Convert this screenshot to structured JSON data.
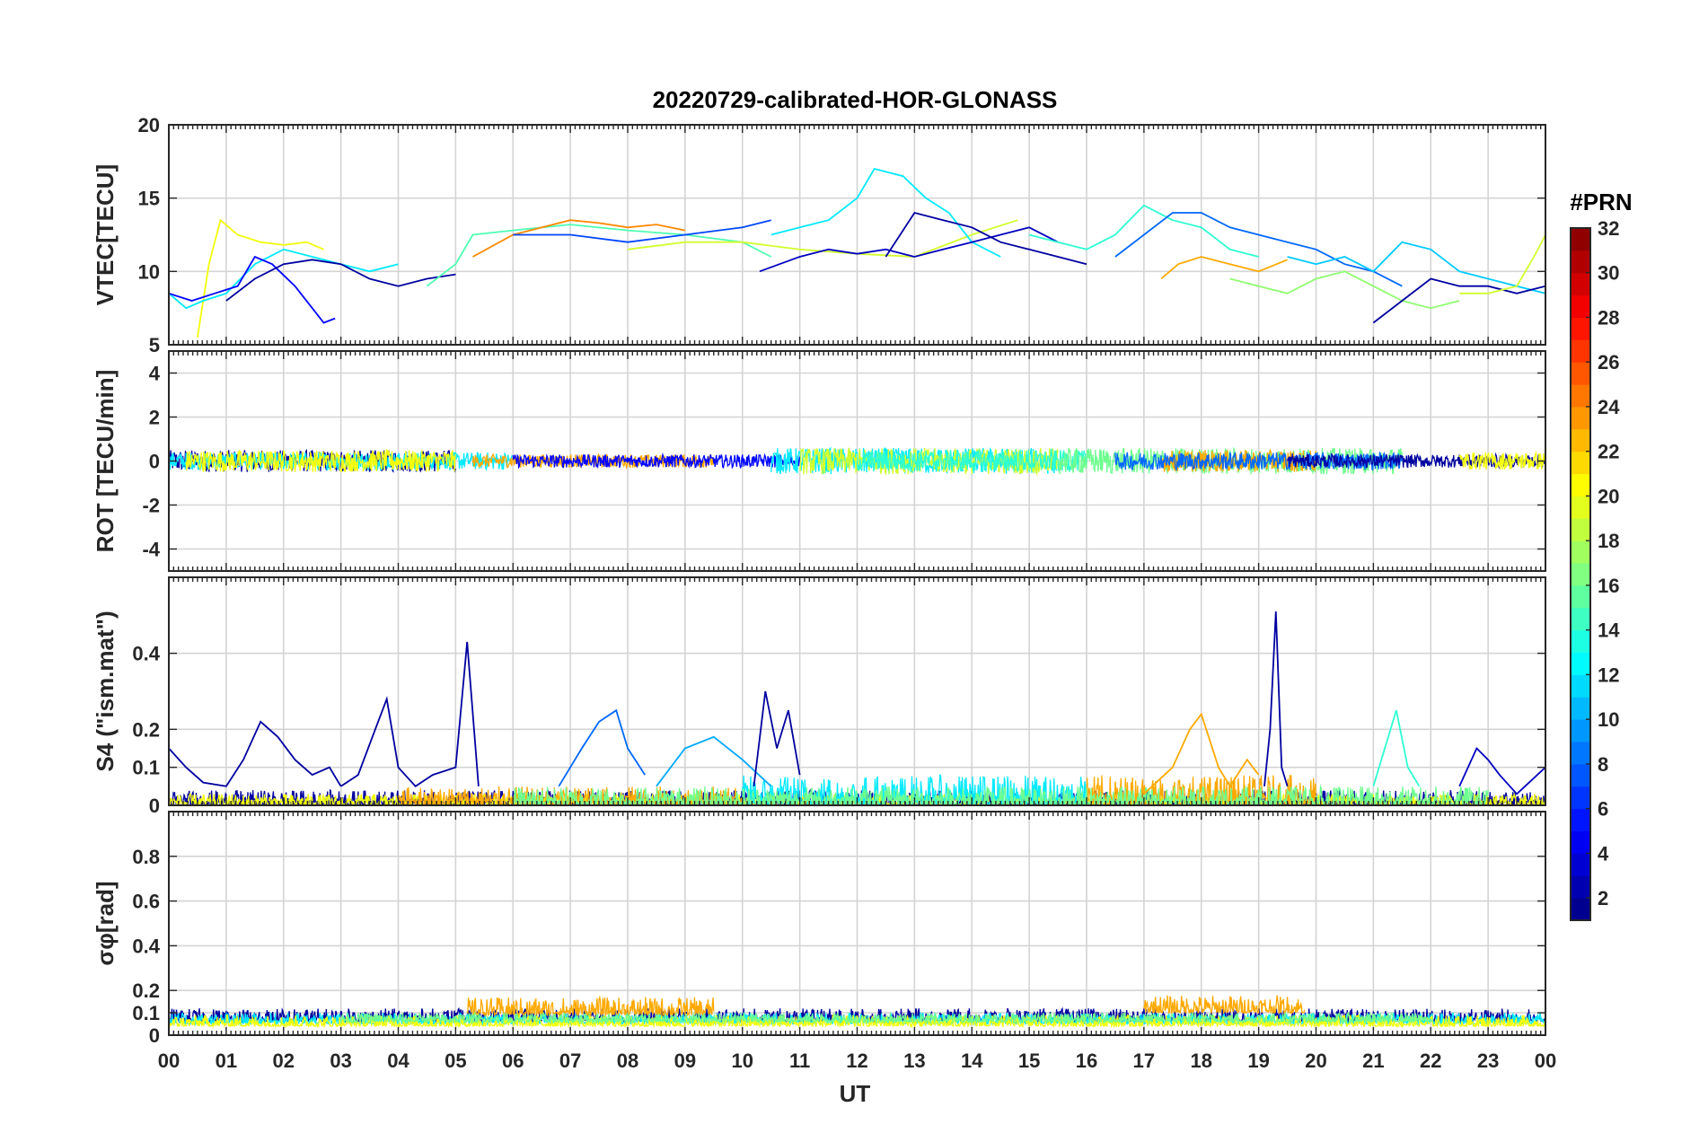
{
  "figure": {
    "title": "20220729-calibrated-HOR-GLONASS",
    "xlabel": "UT",
    "x_tick_labels": [
      "00",
      "01",
      "02",
      "03",
      "04",
      "05",
      "06",
      "07",
      "08",
      "09",
      "10",
      "11",
      "12",
      "13",
      "14",
      "15",
      "16",
      "17",
      "18",
      "19",
      "20",
      "21",
      "22",
      "23",
      "00"
    ]
  },
  "colorbar": {
    "title": "#PRN",
    "colormap": "jet",
    "range": [
      1,
      32
    ],
    "tick_labels": [
      "2",
      "4",
      "6",
      "8",
      "10",
      "12",
      "14",
      "16",
      "18",
      "20",
      "22",
      "24",
      "26",
      "28",
      "30",
      "32"
    ],
    "tick_values": [
      2,
      4,
      6,
      8,
      10,
      12,
      14,
      16,
      18,
      20,
      22,
      24,
      26,
      28,
      30,
      32
    ]
  },
  "chart_data": [
    {
      "type": "line",
      "ylabel": "VTEC[TECU]",
      "xlim": [
        0,
        24
      ],
      "ylim": [
        5,
        20
      ],
      "yticks": [
        5,
        10,
        15,
        20
      ],
      "ytick_labels": [
        "5",
        "10",
        "15",
        "20"
      ],
      "grid": true,
      "x_unit": "UT hours",
      "series": [
        {
          "prn": 20,
          "x": [
            0.5,
            0.7,
            0.9,
            1.2,
            1.6,
            2.0,
            2.4,
            2.7
          ],
          "y": [
            5.5,
            10.5,
            13.5,
            12.5,
            12.0,
            11.8,
            12.0,
            11.5
          ]
        },
        {
          "prn": 12,
          "x": [
            0.0,
            0.3,
            0.6,
            1.0,
            1.5,
            2.0,
            2.5,
            3.0,
            3.5,
            4.0
          ],
          "y": [
            8.5,
            7.5,
            8.0,
            8.5,
            10.5,
            11.5,
            11.0,
            10.5,
            10.0,
            10.5
          ]
        },
        {
          "prn": 5,
          "x": [
            0.0,
            0.4,
            0.8,
            1.2,
            1.5,
            1.8,
            2.2,
            2.5,
            2.7,
            2.9
          ],
          "y": [
            8.5,
            8.0,
            8.5,
            9.0,
            11.0,
            10.5,
            9.0,
            7.5,
            6.5,
            6.8
          ]
        },
        {
          "prn": 2,
          "x": [
            1.0,
            1.5,
            2.0,
            2.5,
            3.0,
            3.5,
            4.0,
            4.5,
            5.0
          ],
          "y": [
            8.0,
            9.5,
            10.5,
            10.8,
            10.5,
            9.5,
            9.0,
            9.5,
            9.8
          ]
        },
        {
          "prn": 15,
          "x": [
            4.5,
            5.0,
            5.3,
            6.0,
            7.0,
            8.0,
            9.0,
            10.0,
            10.5
          ],
          "y": [
            9.0,
            10.5,
            12.5,
            12.8,
            13.2,
            12.8,
            12.5,
            12.0,
            11.0
          ]
        },
        {
          "prn": 24,
          "x": [
            5.3,
            6.0,
            7.0,
            7.5,
            8.0,
            8.5,
            9.0
          ],
          "y": [
            11.0,
            12.5,
            13.5,
            13.3,
            13.0,
            13.2,
            12.8
          ]
        },
        {
          "prn": 7,
          "x": [
            6.0,
            7.0,
            8.0,
            9.0,
            10.0,
            10.5
          ],
          "y": [
            12.5,
            12.5,
            12.0,
            12.5,
            13.0,
            13.5
          ]
        },
        {
          "prn": 19,
          "x": [
            8.0,
            9.0,
            10.0,
            11.0,
            12.0,
            13.0,
            14.0,
            14.8
          ],
          "y": [
            11.5,
            12.0,
            12.0,
            11.5,
            11.2,
            11.0,
            12.5,
            13.5
          ]
        },
        {
          "prn": 12,
          "x": [
            10.5,
            11.0,
            11.5,
            12.0,
            12.3,
            12.8,
            13.2,
            13.6,
            14.0,
            14.5
          ],
          "y": [
            12.5,
            13.0,
            13.5,
            15.0,
            17.0,
            16.5,
            15.0,
            14.0,
            12.0,
            11.0
          ]
        },
        {
          "prn": 3,
          "x": [
            10.3,
            11.0,
            11.5,
            12.0,
            12.5,
            13.0,
            13.5,
            14.0,
            14.5,
            15.0,
            15.5
          ],
          "y": [
            10.0,
            11.0,
            11.5,
            11.2,
            11.5,
            11.0,
            11.5,
            12.0,
            12.5,
            13.0,
            12.0
          ]
        },
        {
          "prn": 2,
          "x": [
            12.5,
            13.0,
            13.5,
            14.0,
            14.5,
            15.0,
            15.5,
            16.0
          ],
          "y": [
            11.0,
            14.0,
            13.5,
            13.0,
            12.0,
            11.5,
            11.0,
            10.5
          ]
        },
        {
          "prn": 14,
          "x": [
            15.0,
            15.5,
            16.0,
            16.5,
            17.0,
            17.5,
            18.0,
            18.5,
            19.0
          ],
          "y": [
            12.5,
            12.0,
            11.5,
            12.5,
            14.5,
            13.5,
            13.0,
            11.5,
            11.0
          ]
        },
        {
          "prn": 23,
          "x": [
            17.3,
            17.6,
            18.0,
            18.5,
            19.0,
            19.5
          ],
          "y": [
            9.5,
            10.5,
            11.0,
            10.5,
            10.0,
            10.8
          ]
        },
        {
          "prn": 8,
          "x": [
            16.5,
            17.0,
            17.5,
            18.0,
            18.5,
            19.0,
            19.5,
            20.0,
            20.5,
            21.0,
            21.5
          ],
          "y": [
            11.0,
            12.5,
            14.0,
            14.0,
            13.0,
            12.5,
            12.0,
            11.5,
            10.5,
            10.0,
            9.0
          ]
        },
        {
          "prn": 17,
          "x": [
            18.5,
            19.0,
            19.5,
            20.0,
            20.5,
            21.0,
            21.5,
            22.0,
            22.5
          ],
          "y": [
            9.5,
            9.0,
            8.5,
            9.5,
            10.0,
            9.0,
            8.0,
            7.5,
            8.0
          ]
        },
        {
          "prn": 11,
          "x": [
            19.5,
            20.0,
            20.5,
            21.0,
            21.5,
            22.0,
            22.5,
            23.0,
            23.5,
            24.0
          ],
          "y": [
            11.0,
            10.5,
            11.0,
            10.0,
            12.0,
            11.5,
            10.0,
            9.5,
            9.0,
            8.5
          ]
        },
        {
          "prn": 2,
          "x": [
            21.0,
            21.5,
            22.0,
            22.5,
            23.0,
            23.5,
            24.0
          ],
          "y": [
            6.5,
            8.0,
            9.5,
            9.0,
            9.0,
            8.5,
            9.0
          ]
        },
        {
          "prn": 19,
          "x": [
            22.5,
            23.0,
            23.5,
            23.8,
            24.0
          ],
          "y": [
            8.5,
            8.5,
            9.0,
            11.0,
            12.5
          ]
        }
      ]
    },
    {
      "type": "line",
      "ylabel": "ROT [TECU/min]",
      "xlim": [
        0,
        24
      ],
      "ylim": [
        -5,
        5
      ],
      "yticks": [
        -4,
        -2,
        0,
        2,
        4
      ],
      "ytick_labels": [
        "-4",
        "-2",
        "0",
        "2",
        "4"
      ],
      "grid": true,
      "x_unit": "UT hours",
      "noise_bands": [
        {
          "prn": 2,
          "x0": 0.0,
          "x1": 5.0,
          "amp": 0.5
        },
        {
          "prn": 12,
          "x0": 0.0,
          "x1": 6.0,
          "amp": 0.4
        },
        {
          "prn": 20,
          "x0": 0.3,
          "x1": 5.0,
          "amp": 0.5
        },
        {
          "prn": 23,
          "x0": 5.3,
          "x1": 9.5,
          "amp": 0.3
        },
        {
          "prn": 5,
          "x0": 6.0,
          "x1": 11.0,
          "amp": 0.3
        },
        {
          "prn": 12,
          "x0": 10.5,
          "x1": 15.5,
          "amp": 0.6
        },
        {
          "prn": 19,
          "x0": 11.0,
          "x1": 15.5,
          "amp": 0.6
        },
        {
          "prn": 14,
          "x0": 12.0,
          "x1": 16.0,
          "amp": 0.5
        },
        {
          "prn": 16,
          "x0": 15.5,
          "x1": 21.5,
          "amp": 0.6
        },
        {
          "prn": 23,
          "x0": 17.3,
          "x1": 20.0,
          "amp": 0.5
        },
        {
          "prn": 8,
          "x0": 16.5,
          "x1": 21.5,
          "amp": 0.4
        },
        {
          "prn": 2,
          "x0": 19.5,
          "x1": 24.0,
          "amp": 0.3
        },
        {
          "prn": 20,
          "x0": 22.5,
          "x1": 24.0,
          "amp": 0.4
        }
      ]
    },
    {
      "type": "line",
      "ylabel": "S4 (\"ism.mat\")",
      "xlim": [
        0,
        24
      ],
      "ylim": [
        0,
        0.6
      ],
      "yticks": [
        0,
        0.1,
        0.2,
        0.4
      ],
      "ytick_labels": [
        "0",
        "0.1",
        "0.2",
        "0.4"
      ],
      "grid": true,
      "x_unit": "UT hours",
      "series": [
        {
          "prn": 2,
          "x": [
            0.0,
            0.3,
            0.6,
            1.0,
            1.3,
            1.6,
            1.9,
            2.2,
            2.5,
            2.8,
            3.0
          ],
          "y": [
            0.15,
            0.1,
            0.06,
            0.05,
            0.12,
            0.22,
            0.18,
            0.12,
            0.08,
            0.1,
            0.05
          ]
        },
        {
          "prn": 2,
          "x": [
            3.0,
            3.3,
            3.6,
            3.8,
            4.0,
            4.3,
            4.6,
            5.0,
            5.2,
            5.4
          ],
          "y": [
            0.05,
            0.08,
            0.2,
            0.28,
            0.1,
            0.05,
            0.08,
            0.1,
            0.43,
            0.05
          ]
        },
        {
          "prn": 8,
          "x": [
            6.8,
            7.2,
            7.5,
            7.8,
            8.0,
            8.3
          ],
          "y": [
            0.05,
            0.15,
            0.22,
            0.25,
            0.15,
            0.08
          ]
        },
        {
          "prn": 10,
          "x": [
            8.5,
            9.0,
            9.5,
            10.0,
            10.5
          ],
          "y": [
            0.05,
            0.15,
            0.18,
            0.12,
            0.05
          ]
        },
        {
          "prn": 2,
          "x": [
            10.2,
            10.4,
            10.6,
            10.8,
            11.0
          ],
          "y": [
            0.05,
            0.3,
            0.15,
            0.25,
            0.08
          ]
        },
        {
          "prn": 23,
          "x": [
            17.0,
            17.5,
            17.8,
            18.0,
            18.3,
            18.5,
            18.8,
            19.0
          ],
          "y": [
            0.03,
            0.1,
            0.2,
            0.24,
            0.1,
            0.05,
            0.12,
            0.08
          ]
        },
        {
          "prn": 2,
          "x": [
            19.1,
            19.2,
            19.3,
            19.4,
            19.5
          ],
          "y": [
            0.05,
            0.2,
            0.51,
            0.1,
            0.05
          ]
        },
        {
          "prn": 14,
          "x": [
            21.0,
            21.2,
            21.4,
            21.6,
            21.8
          ],
          "y": [
            0.05,
            0.15,
            0.25,
            0.1,
            0.05
          ]
        },
        {
          "prn": 3,
          "x": [
            22.5,
            22.8,
            23.0,
            23.2,
            23.5,
            24.0
          ],
          "y": [
            0.05,
            0.15,
            0.12,
            0.08,
            0.03,
            0.1
          ]
        }
      ],
      "noise_bands": [
        {
          "prn": 2,
          "x0": 0.0,
          "x1": 24.0,
          "amp": 0.04
        },
        {
          "prn": 20,
          "x0": 0.0,
          "x1": 24.0,
          "amp": 0.03
        },
        {
          "prn": 23,
          "x0": 4.0,
          "x1": 10.0,
          "amp": 0.05
        },
        {
          "prn": 23,
          "x0": 16.0,
          "x1": 20.0,
          "amp": 0.08
        },
        {
          "prn": 12,
          "x0": 10.0,
          "x1": 16.0,
          "amp": 0.08
        },
        {
          "prn": 16,
          "x0": 6.0,
          "x1": 23.0,
          "amp": 0.05
        }
      ]
    },
    {
      "type": "line",
      "ylabel": "σφ[rad]",
      "xlim": [
        0,
        24
      ],
      "ylim": [
        0,
        1
      ],
      "yticks": [
        0,
        0.1,
        0.2,
        0.4,
        0.6,
        0.8
      ],
      "ytick_labels": [
        "0",
        "0.1",
        "0.2",
        "0.4",
        "0.6",
        "0.8"
      ],
      "grid": true,
      "x_unit": "UT hours",
      "noise_bands": [
        {
          "prn": 2,
          "x0": 0.0,
          "x1": 24.0,
          "amp": 0.06,
          "base": 0.06
        },
        {
          "prn": 12,
          "x0": 0.0,
          "x1": 24.0,
          "amp": 0.05,
          "base": 0.05
        },
        {
          "prn": 20,
          "x0": 0.0,
          "x1": 24.0,
          "amp": 0.05,
          "base": 0.04
        },
        {
          "prn": 23,
          "x0": 5.2,
          "x1": 9.5,
          "amp": 0.08,
          "base": 0.09
        },
        {
          "prn": 23,
          "x0": 17.0,
          "x1": 19.8,
          "amp": 0.08,
          "base": 0.1
        },
        {
          "prn": 16,
          "x0": 3.0,
          "x1": 22.0,
          "amp": 0.04,
          "base": 0.06
        }
      ]
    }
  ]
}
